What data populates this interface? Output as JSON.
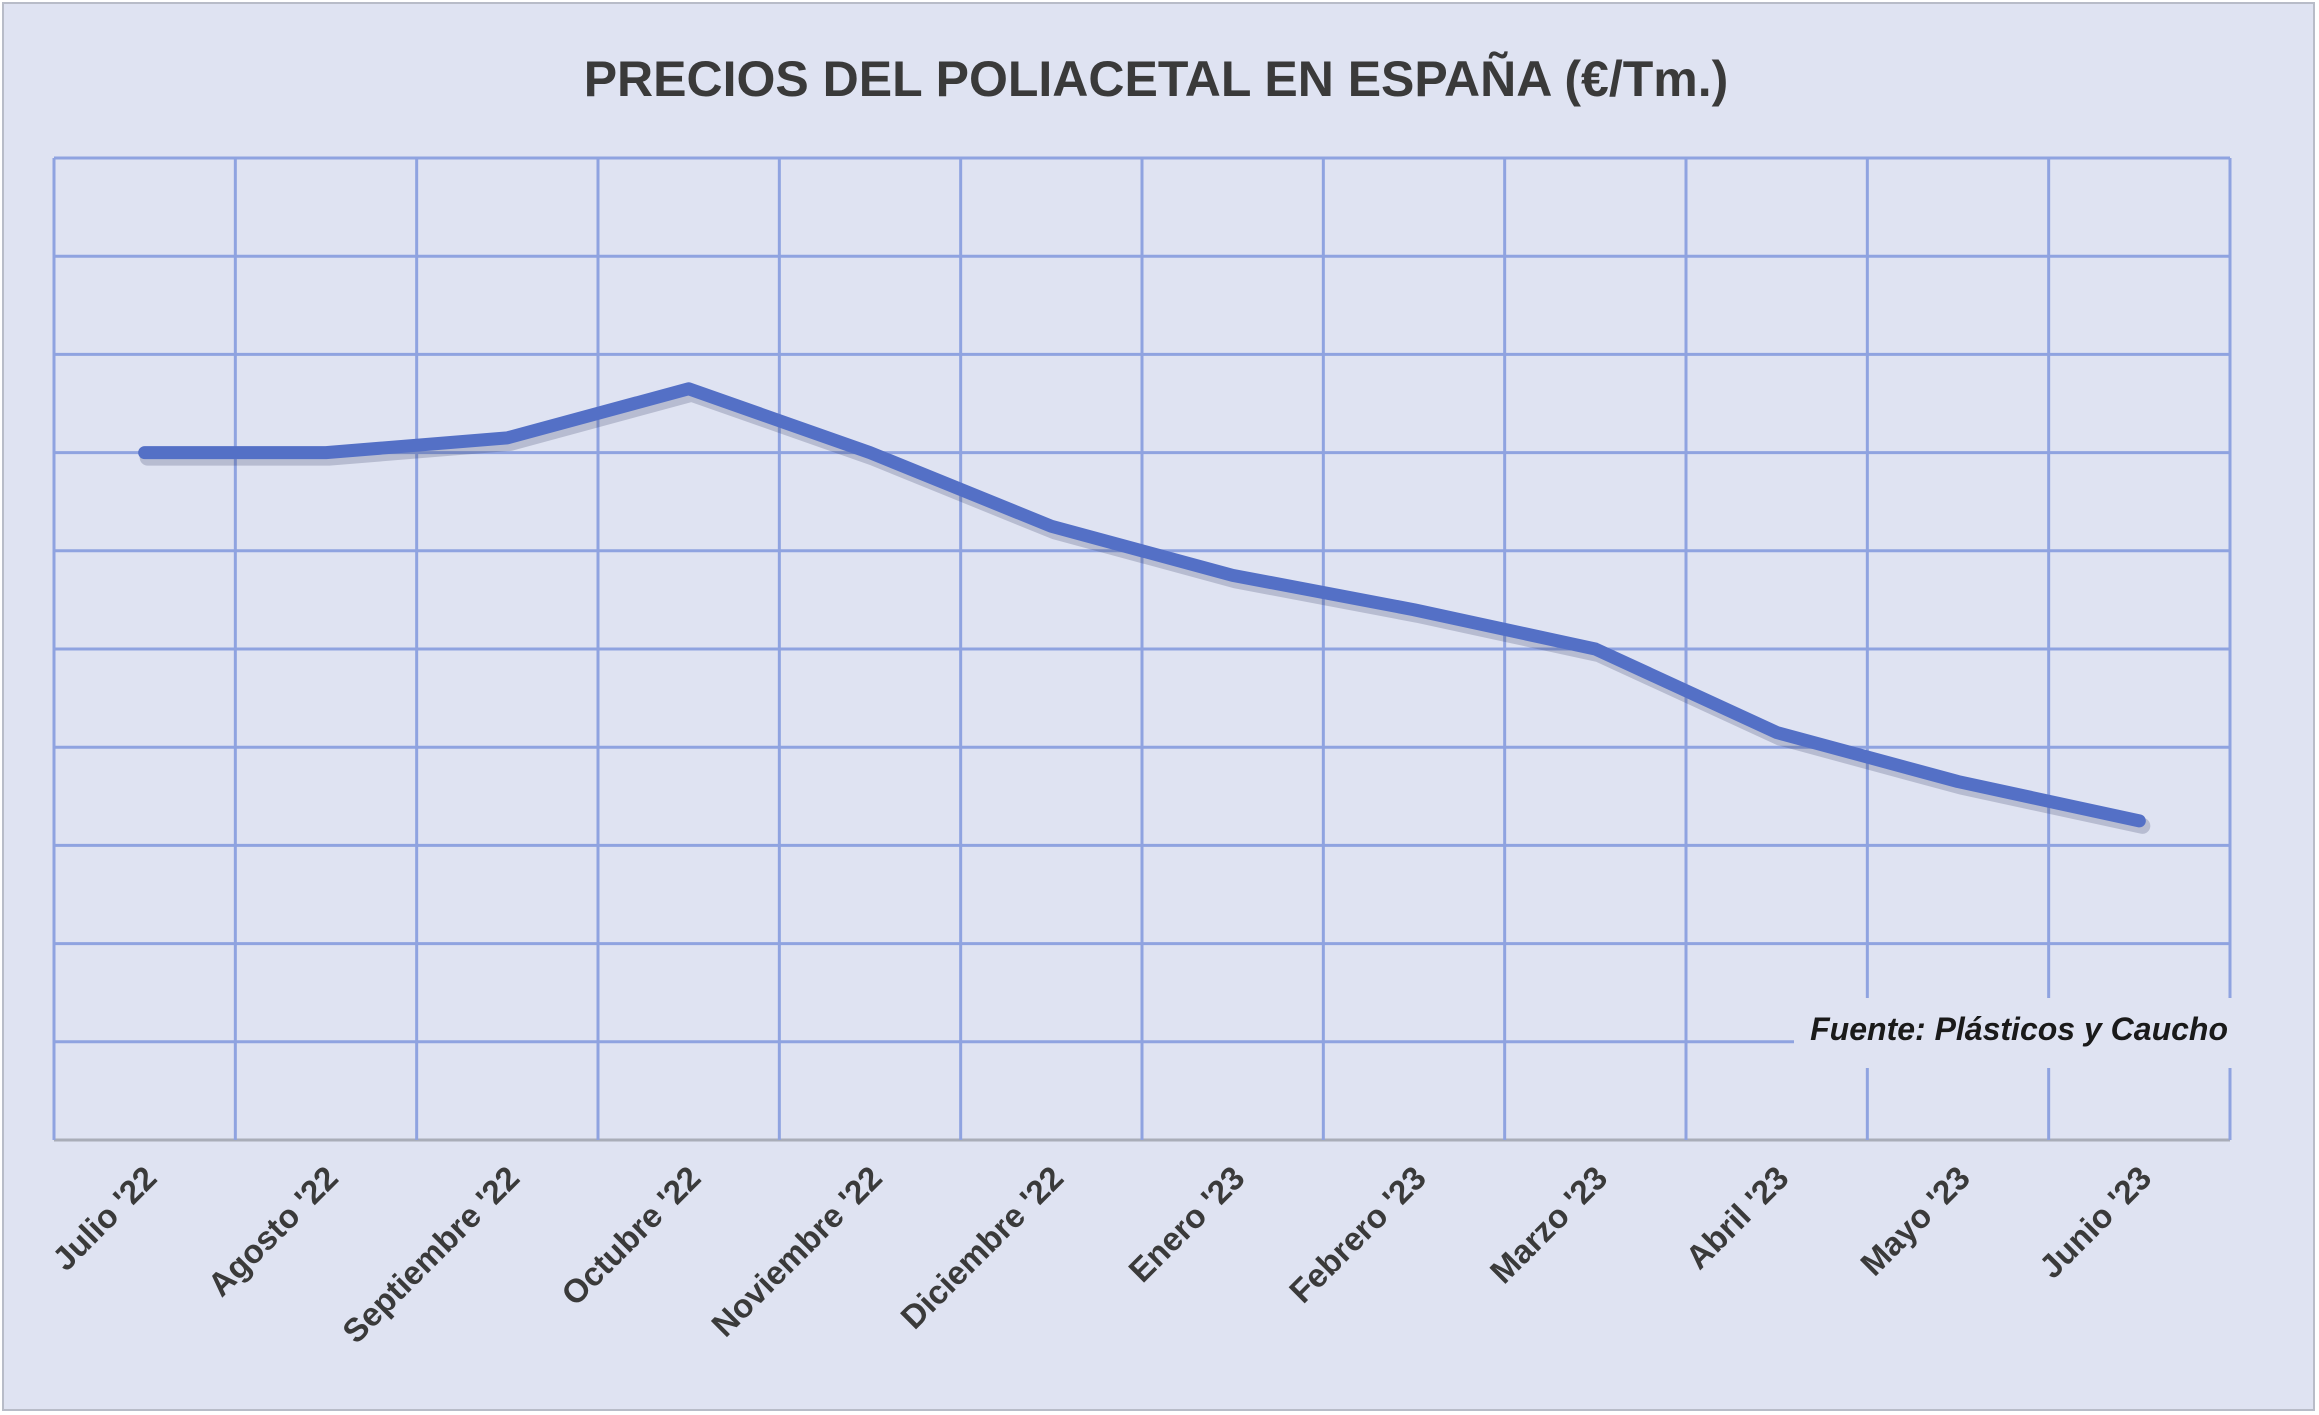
{
  "chart_data": {
    "type": "line",
    "title": "PRECIOS DEL POLIACETAL  EN ESPAÑA (€/Tm.)",
    "xlabel": "",
    "ylabel": "",
    "categories": [
      "Julio '22",
      "Agosto '22",
      "Septiembre '22",
      "Octubre '22",
      "Noviembre '22",
      "Diciembre '22",
      "Enero '23",
      "Febrero '23",
      "Marzo '23",
      "Abril '23",
      "Mayo '23",
      "Junio '23"
    ],
    "series": [
      {
        "values": [
          7.0,
          7.0,
          7.15,
          7.65,
          7.0,
          6.25,
          5.75,
          5.4,
          5.0,
          4.15,
          3.65,
          3.25
        ]
      }
    ],
    "ylim": [
      0,
      10
    ],
    "y_tick_labels_shown": false,
    "grid": true,
    "line_color": "#5470c6",
    "grid_color": "#8fa3e0",
    "background_color": "#dfe3f2",
    "source_note": "Fuente: Plásticos y Caucho"
  }
}
